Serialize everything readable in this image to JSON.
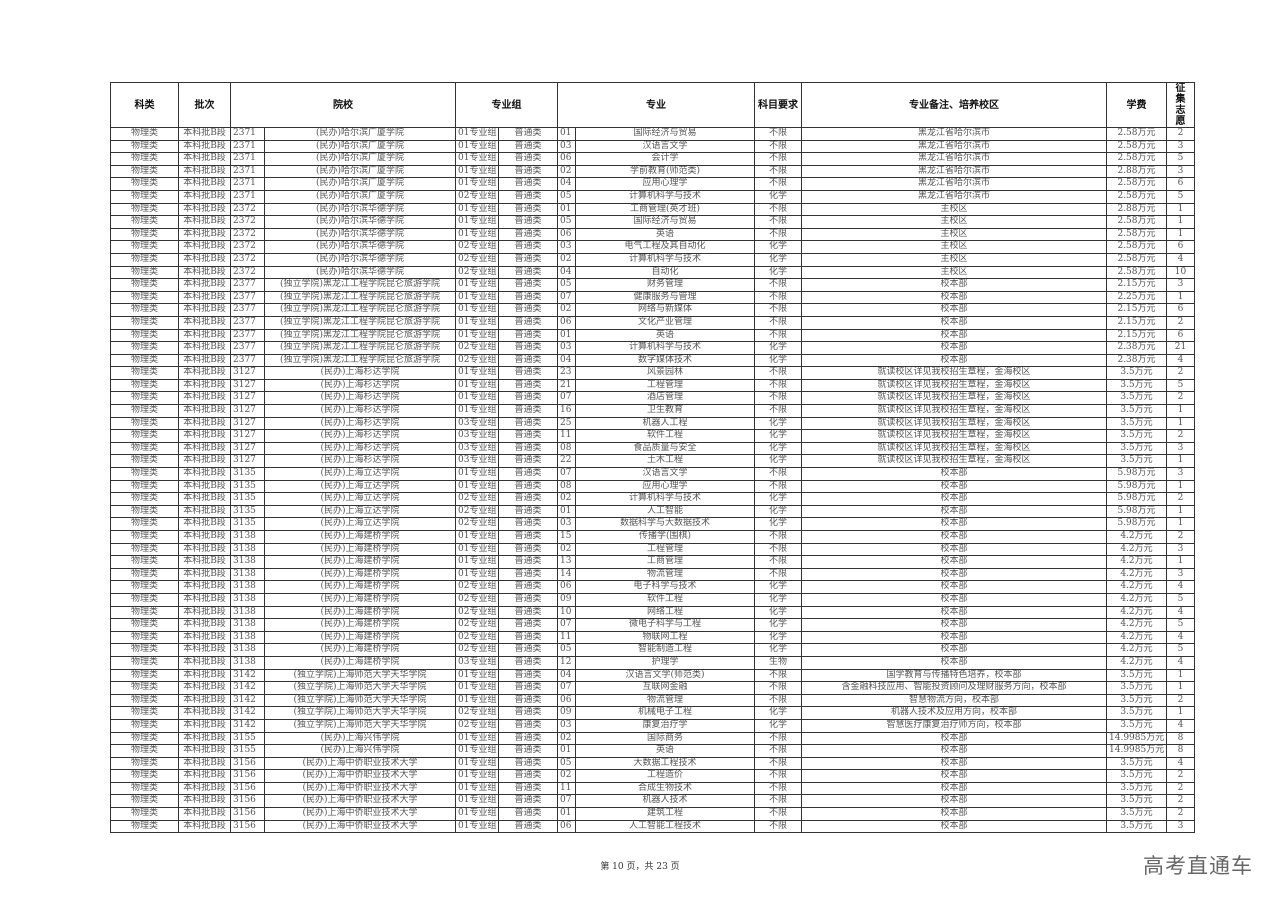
{
  "headers": {
    "category": "科类",
    "batch": "批次",
    "school": "院校",
    "group": "专业组",
    "major": "专业",
    "requirement": "科目要求",
    "notes": "专业备注、培养校区",
    "fee": "学费",
    "quota": "征集志愿"
  },
  "rows": [
    [
      "物理类",
      "本科批B段",
      "2371",
      "(民办)哈尔滨广厦学院",
      "01专业组",
      "普通类",
      "01",
      "国际经济与贸易",
      "不限",
      "黑龙江省哈尔滨市",
      "2.58万元",
      "2"
    ],
    [
      "物理类",
      "本科批B段",
      "2371",
      "(民办)哈尔滨广厦学院",
      "01专业组",
      "普通类",
      "03",
      "汉语言文学",
      "不限",
      "黑龙江省哈尔滨市",
      "2.58万元",
      "3"
    ],
    [
      "物理类",
      "本科批B段",
      "2371",
      "(民办)哈尔滨广厦学院",
      "01专业组",
      "普通类",
      "06",
      "会计学",
      "不限",
      "黑龙江省哈尔滨市",
      "2.58万元",
      "5"
    ],
    [
      "物理类",
      "本科批B段",
      "2371",
      "(民办)哈尔滨广厦学院",
      "01专业组",
      "普通类",
      "02",
      "学前教育(师范类)",
      "不限",
      "黑龙江省哈尔滨市",
      "2.88万元",
      "3"
    ],
    [
      "物理类",
      "本科批B段",
      "2371",
      "(民办)哈尔滨广厦学院",
      "01专业组",
      "普通类",
      "04",
      "应用心理学",
      "不限",
      "黑龙江省哈尔滨市",
      "2.58万元",
      "6"
    ],
    [
      "物理类",
      "本科批B段",
      "2371",
      "(民办)哈尔滨广厦学院",
      "02专业组",
      "普通类",
      "05",
      "计算机科学与技术",
      "化学",
      "黑龙江省哈尔滨市",
      "2.58万元",
      "5"
    ],
    [
      "物理类",
      "本科批B段",
      "2372",
      "(民办)哈尔滨华德学院",
      "01专业组",
      "普通类",
      "01",
      "工商管理(英才班)",
      "不限",
      "主校区",
      "2.88万元",
      "1"
    ],
    [
      "物理类",
      "本科批B段",
      "2372",
      "(民办)哈尔滨华德学院",
      "01专业组",
      "普通类",
      "05",
      "国际经济与贸易",
      "不限",
      "主校区",
      "2.58万元",
      "1"
    ],
    [
      "物理类",
      "本科批B段",
      "2372",
      "(民办)哈尔滨华德学院",
      "01专业组",
      "普通类",
      "06",
      "英语",
      "不限",
      "主校区",
      "2.58万元",
      "1"
    ],
    [
      "物理类",
      "本科批B段",
      "2372",
      "(民办)哈尔滨华德学院",
      "02专业组",
      "普通类",
      "03",
      "电气工程及其自动化",
      "化学",
      "主校区",
      "2.58万元",
      "6"
    ],
    [
      "物理类",
      "本科批B段",
      "2372",
      "(民办)哈尔滨华德学院",
      "02专业组",
      "普通类",
      "02",
      "计算机科学与技术",
      "化学",
      "主校区",
      "2.58万元",
      "4"
    ],
    [
      "物理类",
      "本科批B段",
      "2372",
      "(民办)哈尔滨华德学院",
      "02专业组",
      "普通类",
      "04",
      "自动化",
      "化学",
      "主校区",
      "2.58万元",
      "10"
    ],
    [
      "物理类",
      "本科批B段",
      "2377",
      "(独立学院)黑龙江工程学院昆仑旅游学院",
      "01专业组",
      "普通类",
      "05",
      "财务管理",
      "不限",
      "校本部",
      "2.15万元",
      "3"
    ],
    [
      "物理类",
      "本科批B段",
      "2377",
      "(独立学院)黑龙江工程学院昆仑旅游学院",
      "01专业组",
      "普通类",
      "07",
      "健康服务与管理",
      "不限",
      "校本部",
      "2.25万元",
      "1"
    ],
    [
      "物理类",
      "本科批B段",
      "2377",
      "(独立学院)黑龙江工程学院昆仑旅游学院",
      "01专业组",
      "普通类",
      "02",
      "网络与新媒体",
      "不限",
      "校本部",
      "2.15万元",
      "6"
    ],
    [
      "物理类",
      "本科批B段",
      "2377",
      "(独立学院)黑龙江工程学院昆仑旅游学院",
      "01专业组",
      "普通类",
      "06",
      "文化产业管理",
      "不限",
      "校本部",
      "2.15万元",
      "2"
    ],
    [
      "物理类",
      "本科批B段",
      "2377",
      "(独立学院)黑龙江工程学院昆仑旅游学院",
      "01专业组",
      "普通类",
      "01",
      "英语",
      "不限",
      "校本部",
      "2.15万元",
      "6"
    ],
    [
      "物理类",
      "本科批B段",
      "2377",
      "(独立学院)黑龙江工程学院昆仑旅游学院",
      "02专业组",
      "普通类",
      "03",
      "计算机科学与技术",
      "化学",
      "校本部",
      "2.38万元",
      "21"
    ],
    [
      "物理类",
      "本科批B段",
      "2377",
      "(独立学院)黑龙江工程学院昆仑旅游学院",
      "02专业组",
      "普通类",
      "04",
      "数字媒体技术",
      "化学",
      "校本部",
      "2.38万元",
      "4"
    ],
    [
      "物理类",
      "本科批B段",
      "3127",
      "(民办)上海杉达学院",
      "01专业组",
      "普通类",
      "23",
      "风景园林",
      "不限",
      "就读校区详见我校招生章程，金海校区",
      "3.5万元",
      "2"
    ],
    [
      "物理类",
      "本科批B段",
      "3127",
      "(民办)上海杉达学院",
      "01专业组",
      "普通类",
      "21",
      "工程管理",
      "不限",
      "就读校区详见我校招生章程，金海校区",
      "3.5万元",
      "5"
    ],
    [
      "物理类",
      "本科批B段",
      "3127",
      "(民办)上海杉达学院",
      "01专业组",
      "普通类",
      "07",
      "酒店管理",
      "不限",
      "就读校区详见我校招生章程，金海校区",
      "3.5万元",
      "2"
    ],
    [
      "物理类",
      "本科批B段",
      "3127",
      "(民办)上海杉达学院",
      "01专业组",
      "普通类",
      "16",
      "卫生教育",
      "不限",
      "就读校区详见我校招生章程，金海校区",
      "3.5万元",
      "1"
    ],
    [
      "物理类",
      "本科批B段",
      "3127",
      "(民办)上海杉达学院",
      "03专业组",
      "普通类",
      "25",
      "机器人工程",
      "化学",
      "就读校区详见我校招生章程，金海校区",
      "3.5万元",
      "1"
    ],
    [
      "物理类",
      "本科批B段",
      "3127",
      "(民办)上海杉达学院",
      "03专业组",
      "普通类",
      "11",
      "软件工程",
      "化学",
      "就读校区详见我校招生章程，金海校区",
      "3.5万元",
      "2"
    ],
    [
      "物理类",
      "本科批B段",
      "3127",
      "(民办)上海杉达学院",
      "03专业组",
      "普通类",
      "08",
      "食品质量与安全",
      "化学",
      "就读校区详见我校招生章程，金海校区",
      "3.5万元",
      "3"
    ],
    [
      "物理类",
      "本科批B段",
      "3127",
      "(民办)上海杉达学院",
      "03专业组",
      "普通类",
      "22",
      "土木工程",
      "化学",
      "就读校区详见我校招生章程，金海校区",
      "3.5万元",
      "1"
    ],
    [
      "物理类",
      "本科批B段",
      "3135",
      "(民办)上海立达学院",
      "01专业组",
      "普通类",
      "07",
      "汉语言文学",
      "不限",
      "校本部",
      "5.98万元",
      "3"
    ],
    [
      "物理类",
      "本科批B段",
      "3135",
      "(民办)上海立达学院",
      "01专业组",
      "普通类",
      "08",
      "应用心理学",
      "不限",
      "校本部",
      "5.98万元",
      "1"
    ],
    [
      "物理类",
      "本科批B段",
      "3135",
      "(民办)上海立达学院",
      "02专业组",
      "普通类",
      "02",
      "计算机科学与技术",
      "化学",
      "校本部",
      "5.98万元",
      "2"
    ],
    [
      "物理类",
      "本科批B段",
      "3135",
      "(民办)上海立达学院",
      "02专业组",
      "普通类",
      "01",
      "人工智能",
      "化学",
      "校本部",
      "5.98万元",
      "1"
    ],
    [
      "物理类",
      "本科批B段",
      "3135",
      "(民办)上海立达学院",
      "02专业组",
      "普通类",
      "03",
      "数据科学与大数据技术",
      "化学",
      "校本部",
      "5.98万元",
      "1"
    ],
    [
      "物理类",
      "本科批B段",
      "3138",
      "(民办)上海建桥学院",
      "01专业组",
      "普通类",
      "15",
      "传播学(围棋)",
      "不限",
      "校本部",
      "4.2万元",
      "2"
    ],
    [
      "物理类",
      "本科批B段",
      "3138",
      "(民办)上海建桥学院",
      "01专业组",
      "普通类",
      "02",
      "工程管理",
      "不限",
      "校本部",
      "4.2万元",
      "3"
    ],
    [
      "物理类",
      "本科批B段",
      "3138",
      "(民办)上海建桥学院",
      "01专业组",
      "普通类",
      "13",
      "工商管理",
      "不限",
      "校本部",
      "4.2万元",
      "1"
    ],
    [
      "物理类",
      "本科批B段",
      "3138",
      "(民办)上海建桥学院",
      "01专业组",
      "普通类",
      "14",
      "物流管理",
      "不限",
      "校本部",
      "4.2万元",
      "3"
    ],
    [
      "物理类",
      "本科批B段",
      "3138",
      "(民办)上海建桥学院",
      "02专业组",
      "普通类",
      "06",
      "电子科学与技术",
      "化学",
      "校本部",
      "4.2万元",
      "4"
    ],
    [
      "物理类",
      "本科批B段",
      "3138",
      "(民办)上海建桥学院",
      "02专业组",
      "普通类",
      "09",
      "软件工程",
      "化学",
      "校本部",
      "4.2万元",
      "5"
    ],
    [
      "物理类",
      "本科批B段",
      "3138",
      "(民办)上海建桥学院",
      "02专业组",
      "普通类",
      "10",
      "网络工程",
      "化学",
      "校本部",
      "4.2万元",
      "4"
    ],
    [
      "物理类",
      "本科批B段",
      "3138",
      "(民办)上海建桥学院",
      "02专业组",
      "普通类",
      "07",
      "微电子科学与工程",
      "化学",
      "校本部",
      "4.2万元",
      "5"
    ],
    [
      "物理类",
      "本科批B段",
      "3138",
      "(民办)上海建桥学院",
      "02专业组",
      "普通类",
      "11",
      "物联网工程",
      "化学",
      "校本部",
      "4.2万元",
      "4"
    ],
    [
      "物理类",
      "本科批B段",
      "3138",
      "(民办)上海建桥学院",
      "02专业组",
      "普通类",
      "05",
      "智能制造工程",
      "化学",
      "校本部",
      "4.2万元",
      "5"
    ],
    [
      "物理类",
      "本科批B段",
      "3138",
      "(民办)上海建桥学院",
      "03专业组",
      "普通类",
      "12",
      "护理学",
      "生物",
      "校本部",
      "4.2万元",
      "4"
    ],
    [
      "物理类",
      "本科批B段",
      "3142",
      "(独立学院)上海师范大学天华学院",
      "01专业组",
      "普通类",
      "04",
      "汉语言文学(师范类)",
      "不限",
      "国学教育与传播特色培养，校本部",
      "3.5万元",
      "1"
    ],
    [
      "物理类",
      "本科批B段",
      "3142",
      "(独立学院)上海师范大学天华学院",
      "01专业组",
      "普通类",
      "07",
      "互联网金融",
      "不限",
      "含金融科技应用、智能投资顾问及理财服务方向，校本部",
      "3.5万元",
      "1"
    ],
    [
      "物理类",
      "本科批B段",
      "3142",
      "(独立学院)上海师范大学天华学院",
      "01专业组",
      "普通类",
      "06",
      "物流管理",
      "不限",
      "智慧物流方向，校本部",
      "3.5万元",
      "2"
    ],
    [
      "物理类",
      "本科批B段",
      "3142",
      "(独立学院)上海师范大学天华学院",
      "02专业组",
      "普通类",
      "09",
      "机械电子工程",
      "化学",
      "机器人技术及应用方向，校本部",
      "3.5万元",
      "1"
    ],
    [
      "物理类",
      "本科批B段",
      "3142",
      "(独立学院)上海师范大学天华学院",
      "02专业组",
      "普通类",
      "03",
      "康复治疗学",
      "化学",
      "智慧医疗康复治疗师方向，校本部",
      "3.5万元",
      "4"
    ],
    [
      "物理类",
      "本科批B段",
      "3155",
      "(民办)上海兴伟学院",
      "01专业组",
      "普通类",
      "02",
      "国际商务",
      "不限",
      "校本部",
      "14.9985万元",
      "8"
    ],
    [
      "物理类",
      "本科批B段",
      "3155",
      "(民办)上海兴伟学院",
      "01专业组",
      "普通类",
      "01",
      "英语",
      "不限",
      "校本部",
      "14.9985万元",
      "8"
    ],
    [
      "物理类",
      "本科批B段",
      "3156",
      "(民办)上海中侨职业技术大学",
      "01专业组",
      "普通类",
      "05",
      "大数据工程技术",
      "不限",
      "校本部",
      "3.5万元",
      "4"
    ],
    [
      "物理类",
      "本科批B段",
      "3156",
      "(民办)上海中侨职业技术大学",
      "01专业组",
      "普通类",
      "02",
      "工程造价",
      "不限",
      "校本部",
      "3.5万元",
      "2"
    ],
    [
      "物理类",
      "本科批B段",
      "3156",
      "(民办)上海中侨职业技术大学",
      "01专业组",
      "普通类",
      "11",
      "合成生物技术",
      "不限",
      "校本部",
      "3.5万元",
      "2"
    ],
    [
      "物理类",
      "本科批B段",
      "3156",
      "(民办)上海中侨职业技术大学",
      "01专业组",
      "普通类",
      "07",
      "机器人技术",
      "不限",
      "校本部",
      "3.5万元",
      "2"
    ],
    [
      "物理类",
      "本科批B段",
      "3156",
      "(民办)上海中侨职业技术大学",
      "01专业组",
      "普通类",
      "01",
      "建筑工程",
      "不限",
      "校本部",
      "3.5万元",
      "2"
    ],
    [
      "物理类",
      "本科批B段",
      "3156",
      "(民办)上海中侨职业技术大学",
      "01专业组",
      "普通类",
      "06",
      "人工智能工程技术",
      "不限",
      "校本部",
      "3.5万元",
      "3"
    ]
  ],
  "footer": {
    "page_label": "第 10 页，共 23 页"
  },
  "watermark": "高考直通车"
}
